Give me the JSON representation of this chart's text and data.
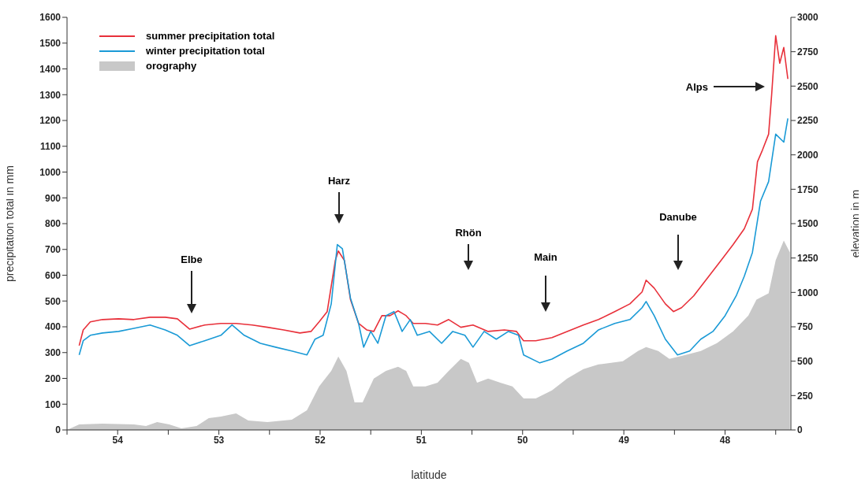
{
  "chart_data": {
    "type": "line",
    "xlabel": "latitude",
    "ylabel": "precipitation total in mm",
    "y2label": "elevation in m",
    "xlim": [
      54.5,
      47.35
    ],
    "xticks": [
      {
        "value": 54.5,
        "label": null
      },
      54,
      {
        "value": 53.5,
        "label": null
      },
      53,
      {
        "value": 52.5,
        "label": null
      },
      52,
      {
        "value": 51.5,
        "label": null
      },
      51,
      {
        "value": 50.5,
        "label": null
      },
      50,
      {
        "value": 49.5,
        "label": null
      },
      49,
      {
        "value": 48.5,
        "label": null
      },
      48,
      {
        "value": 47.5,
        "label": null
      }
    ],
    "ylim": [
      0,
      1600
    ],
    "yticks": [
      0,
      100,
      200,
      300,
      400,
      500,
      600,
      700,
      800,
      900,
      1000,
      1100,
      1200,
      1300,
      1400,
      1500,
      1600
    ],
    "y2lim": [
      0,
      3000
    ],
    "y2ticks": [
      0,
      250,
      500,
      750,
      1000,
      1250,
      1500,
      1750,
      2000,
      2250,
      2500,
      2750,
      3000
    ],
    "grid": false,
    "legend": "top left",
    "marker": "none",
    "line_style": "solid",
    "series": [
      {
        "name": "orography",
        "type": "area",
        "axis": "y2",
        "color": "#c8c8c8",
        "x": [
          54.5,
          54.38,
          54.15,
          53.84,
          53.72,
          53.61,
          53.49,
          53.37,
          53.22,
          53.1,
          52.98,
          52.83,
          52.71,
          52.52,
          52.28,
          52.13,
          52.01,
          51.89,
          51.82,
          51.74,
          51.66,
          51.58,
          51.47,
          51.35,
          51.23,
          51.15,
          51.08,
          50.96,
          50.84,
          50.73,
          50.61,
          50.53,
          50.45,
          50.34,
          50.22,
          50.1,
          49.99,
          49.87,
          49.71,
          49.56,
          49.4,
          49.25,
          49.01,
          48.86,
          48.78,
          48.66,
          48.55,
          48.39,
          48.24,
          48.08,
          47.92,
          47.77,
          47.69,
          47.57,
          47.5,
          47.42,
          47.36
        ],
        "values": [
          0,
          40,
          46,
          40,
          29,
          57,
          40,
          11,
          29,
          86,
          98,
          120,
          69,
          57,
          75,
          143,
          316,
          430,
          534,
          430,
          201,
          201,
          373,
          430,
          459,
          430,
          316,
          316,
          344,
          430,
          516,
          488,
          344,
          373,
          344,
          316,
          229,
          229,
          287,
          373,
          442,
          476,
          499,
          574,
          602,
          574,
          516,
          545,
          574,
          631,
          717,
          832,
          947,
          993,
          1234,
          1377,
          1291
        ]
      },
      {
        "name": "summer precipitation total",
        "color": "#e8303a",
        "x": [
          54.38,
          54.34,
          54.27,
          54.15,
          53.99,
          53.84,
          53.68,
          53.53,
          53.41,
          53.29,
          53.14,
          52.98,
          52.83,
          52.67,
          52.52,
          52.36,
          52.2,
          52.09,
          52.01,
          51.93,
          51.85,
          51.82,
          51.76,
          51.7,
          51.62,
          51.54,
          51.47,
          51.39,
          51.31,
          51.23,
          51.15,
          51.08,
          50.96,
          50.84,
          50.73,
          50.61,
          50.49,
          50.34,
          50.18,
          50.06,
          49.99,
          49.87,
          49.71,
          49.56,
          49.4,
          49.25,
          49.09,
          48.94,
          48.82,
          48.78,
          48.7,
          48.59,
          48.51,
          48.43,
          48.31,
          48.16,
          48.04,
          47.92,
          47.81,
          47.73,
          47.68,
          47.63,
          47.57,
          47.54,
          47.5,
          47.46,
          47.42,
          47.38
        ],
        "values": [
          327,
          388,
          419,
          428,
          431,
          428,
          437,
          437,
          431,
          391,
          407,
          413,
          413,
          407,
          398,
          388,
          376,
          382,
          419,
          459,
          657,
          694,
          657,
          505,
          413,
          388,
          382,
          443,
          443,
          462,
          443,
          413,
          413,
          407,
          428,
          398,
          407,
          382,
          388,
          382,
          346,
          346,
          358,
          382,
          407,
          428,
          459,
          489,
          535,
          581,
          550,
          489,
          459,
          474,
          520,
          596,
          657,
          719,
          780,
          856,
          1040,
          1086,
          1147,
          1300,
          1529,
          1422,
          1483,
          1361
        ]
      },
      {
        "name": "winter precipitation total",
        "color": "#1a9ad6",
        "x": [
          54.38,
          54.34,
          54.27,
          54.15,
          53.99,
          53.84,
          53.68,
          53.53,
          53.41,
          53.29,
          53.14,
          52.98,
          52.87,
          52.75,
          52.59,
          52.44,
          52.28,
          52.13,
          52.05,
          51.97,
          51.89,
          51.83,
          51.78,
          51.7,
          51.62,
          51.57,
          51.5,
          51.43,
          51.35,
          51.27,
          51.19,
          51.11,
          51.04,
          50.92,
          50.8,
          50.69,
          50.57,
          50.49,
          50.38,
          50.26,
          50.14,
          50.04,
          49.99,
          49.83,
          49.71,
          49.56,
          49.4,
          49.25,
          49.09,
          48.94,
          48.82,
          48.78,
          48.7,
          48.59,
          48.47,
          48.35,
          48.24,
          48.12,
          48.0,
          47.89,
          47.81,
          47.73,
          47.65,
          47.57,
          47.5,
          47.42,
          47.38
        ],
        "values": [
          291,
          346,
          367,
          376,
          382,
          394,
          407,
          388,
          367,
          327,
          346,
          367,
          407,
          367,
          336,
          321,
          306,
          291,
          352,
          367,
          489,
          719,
          703,
          511,
          413,
          321,
          382,
          336,
          443,
          459,
          382,
          428,
          367,
          382,
          336,
          382,
          367,
          321,
          382,
          352,
          382,
          367,
          291,
          260,
          275,
          306,
          336,
          388,
          413,
          428,
          474,
          498,
          443,
          352,
          291,
          306,
          352,
          382,
          443,
          520,
          596,
          688,
          887,
          963,
          1147,
          1116,
          1208
        ]
      }
    ],
    "annotations": [
      "Elbe",
      "Harz",
      "Rhön",
      "Main",
      "Danube",
      "Alps"
    ]
  }
}
